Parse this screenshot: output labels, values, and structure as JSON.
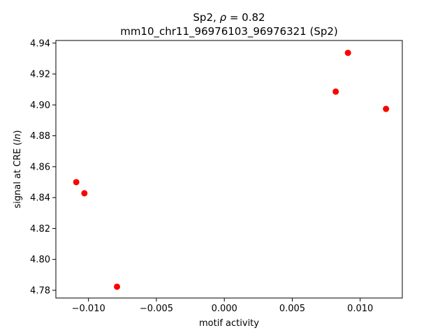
{
  "chart_data": {
    "type": "scatter",
    "title_line1": "Sp2, ρ = 0.82",
    "title_line2": "mm10_chr11_96976103_96976321 (Sp2)",
    "xlabel": "motif activity",
    "ylabel": "signal at CRE (ln)",
    "xlim": [
      -0.0124,
      0.0131
    ],
    "ylim": [
      4.775,
      4.9417
    ],
    "x_ticks": [
      -0.01,
      -0.005,
      0.0,
      0.005,
      0.01
    ],
    "x_tick_labels": [
      "−0.010",
      "−0.005",
      "0.000",
      "0.005",
      "0.010"
    ],
    "y_ticks": [
      4.78,
      4.8,
      4.82,
      4.84,
      4.86,
      4.88,
      4.9,
      4.92,
      4.94
    ],
    "y_tick_labels": [
      "4.78",
      "4.80",
      "4.82",
      "4.84",
      "4.86",
      "4.88",
      "4.90",
      "4.92",
      "4.94"
    ],
    "points": [
      {
        "x": -0.0109,
        "y": 4.85
      },
      {
        "x": -0.0103,
        "y": 4.8428
      },
      {
        "x": -0.0079,
        "y": 4.7823
      },
      {
        "x": 0.0082,
        "y": 4.9086
      },
      {
        "x": 0.0091,
        "y": 4.9337
      },
      {
        "x": 0.0119,
        "y": 4.8974
      }
    ],
    "marker_color": "#ff0000",
    "grid": false,
    "legend": "none"
  }
}
